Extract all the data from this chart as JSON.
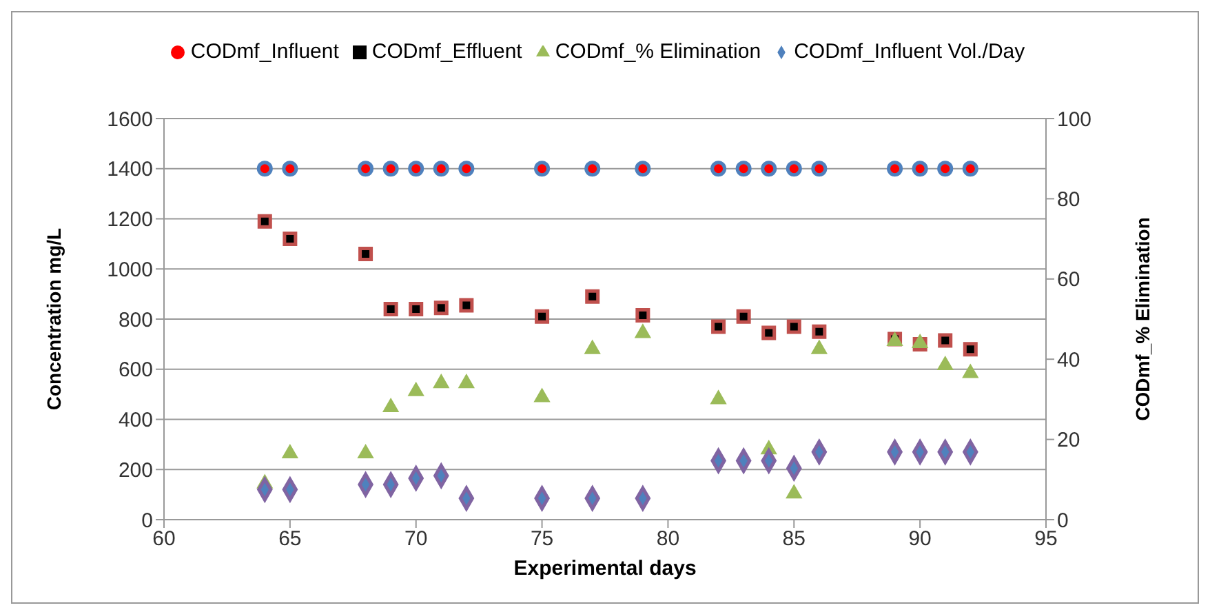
{
  "chart_data": {
    "type": "scatter",
    "xlabel": "Experimental days",
    "ylabel": "Concentration mg/L",
    "y2label": "CODmf_% Elimination",
    "x": [
      64,
      65,
      68,
      69,
      70,
      71,
      72,
      75,
      77,
      79,
      82,
      83,
      84,
      85,
      86,
      89,
      90,
      91,
      92
    ],
    "series": [
      {
        "name": "CODmf_Influent",
        "color": "#ff0000",
        "marker": "circle",
        "values": [
          1400,
          1400,
          1400,
          1400,
          1400,
          1400,
          1400,
          1400,
          1400,
          1400,
          1400,
          1400,
          1400,
          1400,
          1400,
          1400,
          1400,
          1400,
          1400
        ]
      },
      {
        "name": "CODmf_Effluent",
        "color": "#000000",
        "marker": "square",
        "values": [
          1190,
          1120,
          1060,
          840,
          840,
          845,
          855,
          810,
          890,
          815,
          770,
          810,
          745,
          770,
          750,
          720,
          700,
          715,
          680
        ]
      },
      {
        "name": "CODmf_% Elimination",
        "color": "#9bbb59",
        "marker": "triangle",
        "axis": "y2",
        "values": [
          9,
          16.5,
          16.5,
          28,
          32,
          34,
          34,
          30.5,
          42.5,
          46.5,
          30,
          null,
          17.5,
          6.5,
          42.5,
          44.5,
          44,
          38.5,
          36.5
        ]
      },
      {
        "name": "CODmf_Influent Vol./Day",
        "color": "#4f81bd",
        "marker": "diamond",
        "values": [
          120,
          120,
          140,
          140,
          165,
          175,
          85,
          85,
          85,
          85,
          235,
          235,
          235,
          205,
          270,
          270,
          270,
          270,
          270
        ]
      }
    ],
    "xlim": [
      60,
      95
    ],
    "xticks": [
      60,
      65,
      70,
      75,
      80,
      85,
      90,
      95
    ],
    "ylim": [
      0,
      1600
    ],
    "yticks": [
      0,
      200,
      400,
      600,
      800,
      1000,
      1200,
      1400,
      1600
    ],
    "y2lim": [
      0,
      100
    ],
    "y2ticks": [
      0,
      20,
      40,
      60,
      80,
      100
    ],
    "grid": "y",
    "legend": "top"
  }
}
